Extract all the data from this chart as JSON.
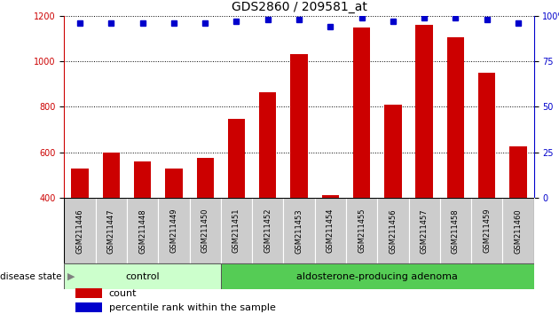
{
  "title": "GDS2860 / 209581_at",
  "categories": [
    "GSM211446",
    "GSM211447",
    "GSM211448",
    "GSM211449",
    "GSM211450",
    "GSM211451",
    "GSM211452",
    "GSM211453",
    "GSM211454",
    "GSM211455",
    "GSM211456",
    "GSM211457",
    "GSM211458",
    "GSM211459",
    "GSM211460"
  ],
  "counts": [
    530,
    600,
    560,
    530,
    575,
    745,
    865,
    1030,
    410,
    1150,
    810,
    1160,
    1105,
    950,
    625
  ],
  "percentiles": [
    96,
    96,
    96,
    96,
    96,
    97,
    98,
    98,
    94,
    99,
    97,
    99,
    99,
    98,
    96
  ],
  "ylim_left": [
    400,
    1200
  ],
  "ylim_right": [
    0,
    100
  ],
  "yticks_left": [
    400,
    600,
    800,
    1000,
    1200
  ],
  "yticks_right": [
    0,
    25,
    50,
    75,
    100
  ],
  "bar_color": "#cc0000",
  "dot_color": "#0000cc",
  "n_control": 5,
  "n_adenoma": 10,
  "control_label": "control",
  "adenoma_label": "aldosterone-producing adenoma",
  "disease_state_label": "disease state",
  "legend_count_label": "count",
  "legend_percentile_label": "percentile rank within the sample",
  "control_color": "#ccffcc",
  "adenoma_color": "#55cc55",
  "label_box_color": "#cccccc",
  "title_fontsize": 10,
  "tick_fontsize": 7,
  "xlabel_fontsize": 6,
  "legend_fontsize": 8,
  "disease_fontsize": 8
}
